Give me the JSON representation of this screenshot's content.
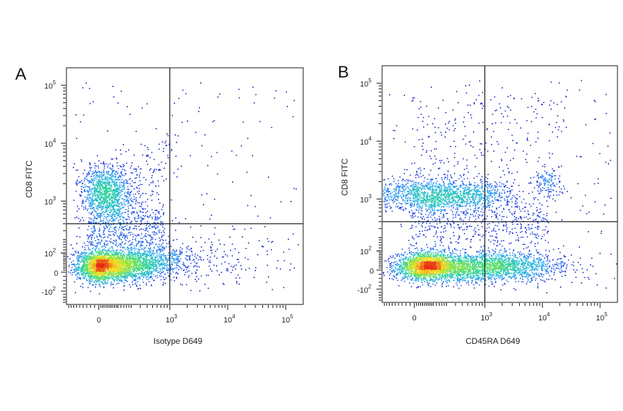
{
  "chart_data": [
    {
      "type": "scatter",
      "panel_letter": "A",
      "xlabel": "Isotype D649",
      "ylabel": "CD8 FITC",
      "x_scale": "biexponential",
      "y_scale": "biexponential",
      "xlim": [
        -200,
        200000
      ],
      "ylim": [
        -200,
        200000
      ],
      "x_ticks": [
        {
          "value": 0,
          "base": "0",
          "exp": ""
        },
        {
          "value": 1000,
          "base": "10",
          "exp": "3"
        },
        {
          "value": 10000,
          "base": "10",
          "exp": "4"
        },
        {
          "value": 100000,
          "base": "10",
          "exp": "5"
        }
      ],
      "y_ticks": [
        {
          "value": -100,
          "base": "-10",
          "exp": "2"
        },
        {
          "value": 0,
          "base": "0",
          "exp": ""
        },
        {
          "value": 100,
          "base": "10",
          "exp": "2"
        },
        {
          "value": 1000,
          "base": "10",
          "exp": "3"
        },
        {
          "value": 10000,
          "base": "10",
          "exp": "4"
        },
        {
          "value": 100000,
          "base": "10",
          "exp": "5"
        }
      ],
      "quadrant_gate": {
        "x": 1000,
        "y": 400
      },
      "colormap": "pseudocolor density (blue-cyan-green-yellow-red)",
      "populations": [
        {
          "x_center": 30,
          "y_center": 30,
          "relative_density": 1.0,
          "peak_color": "red"
        },
        {
          "x_center": 30,
          "y_center": 1500,
          "relative_density": 0.35,
          "peak_color": "cyan"
        },
        {
          "x_center": 300,
          "y_center": 60,
          "relative_density": 0.25,
          "peak_color": "green"
        },
        {
          "x_center": 5000,
          "y_center": 80,
          "relative_density": 0.05,
          "peak_color": "blue"
        }
      ]
    },
    {
      "type": "scatter",
      "panel_letter": "B",
      "xlabel": "CD45RA D649",
      "ylabel": "CD8 FITC",
      "x_scale": "biexponential",
      "y_scale": "biexponential",
      "xlim": [
        -200,
        200000
      ],
      "ylim": [
        -200,
        200000
      ],
      "x_ticks": [
        {
          "value": 0,
          "base": "0",
          "exp": ""
        },
        {
          "value": 1000,
          "base": "10",
          "exp": "3"
        },
        {
          "value": 10000,
          "base": "10",
          "exp": "4"
        },
        {
          "value": 100000,
          "base": "10",
          "exp": "5"
        }
      ],
      "y_ticks": [
        {
          "value": -100,
          "base": "-10",
          "exp": "2"
        },
        {
          "value": 0,
          "base": "0",
          "exp": ""
        },
        {
          "value": 100,
          "base": "10",
          "exp": "2"
        },
        {
          "value": 1000,
          "base": "10",
          "exp": "3"
        },
        {
          "value": 10000,
          "base": "10",
          "exp": "4"
        },
        {
          "value": 100000,
          "base": "10",
          "exp": "5"
        }
      ],
      "quadrant_gate": {
        "x": 1000,
        "y": 400
      },
      "colormap": "pseudocolor density (blue-cyan-green-yellow-red)",
      "populations": [
        {
          "x_center": 60,
          "y_center": 20,
          "relative_density": 1.0,
          "peak_color": "red"
        },
        {
          "x_center": 1000,
          "y_center": 20,
          "relative_density": 0.6,
          "peak_color": "yellow-green"
        },
        {
          "x_center": 150,
          "y_center": 1200,
          "relative_density": 0.45,
          "peak_color": "cyan"
        },
        {
          "x_center": 12000,
          "y_center": 2000,
          "relative_density": 0.08,
          "peak_color": "blue"
        }
      ]
    }
  ]
}
